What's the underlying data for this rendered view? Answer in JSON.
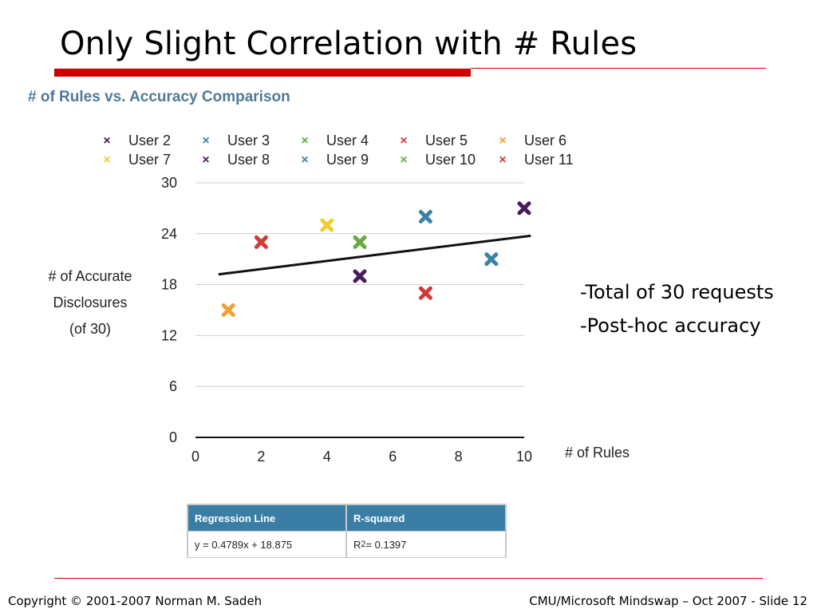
{
  "slide": {
    "title": "Only Slight Correlation with # Rules",
    "notes": [
      "-Total of 30 requests",
      "-Post-hoc accuracy"
    ],
    "footer_left": "Copyright © 2001-2007 Norman M. Sadeh",
    "footer_right": "CMU/Microsoft Mindswap – Oct  2007 - Slide 12",
    "accent_color": "#cc0000"
  },
  "chart_data": {
    "type": "scatter",
    "title": "# of Rules vs. Accuracy Comparison",
    "xlabel": "# of Rules",
    "ylabel_lines": [
      "# of Accurate",
      "Disclosures",
      "(of 30)"
    ],
    "xlim": [
      0,
      10
    ],
    "ylim": [
      0,
      30
    ],
    "x_ticks": [
      0,
      2,
      4,
      6,
      8,
      10
    ],
    "y_ticks": [
      0,
      6,
      12,
      18,
      24,
      30
    ],
    "grid": true,
    "legend_position": "top",
    "series": [
      {
        "name": "User 2",
        "color": "#4a1b5a",
        "points": [
          [
            5,
            19
          ]
        ]
      },
      {
        "name": "User 3",
        "color": "#3b82a8",
        "points": [
          [
            9,
            21
          ]
        ]
      },
      {
        "name": "User 4",
        "color": "#6aaa45",
        "points": [
          [
            5,
            23
          ]
        ]
      },
      {
        "name": "User 5",
        "color": "#d23a3a",
        "points": [
          [
            7,
            17
          ]
        ]
      },
      {
        "name": "User 6",
        "color": "#f0a030",
        "points": [
          [
            1,
            15
          ]
        ]
      },
      {
        "name": "User 7",
        "color": "#f0cc30",
        "points": [
          [
            4,
            25
          ]
        ]
      },
      {
        "name": "User 8",
        "color": "#4a1b5a",
        "points": [
          [
            10,
            27
          ]
        ]
      },
      {
        "name": "User 9",
        "color": "#3b82a8",
        "points": [
          [
            7,
            26
          ]
        ]
      },
      {
        "name": "User 10",
        "color": "#6aaa45",
        "points": []
      },
      {
        "name": "User 11",
        "color": "#d23a3a",
        "points": [
          [
            2,
            23
          ]
        ]
      }
    ],
    "regression": {
      "slope": 0.4789,
      "intercept": 18.875,
      "x_range": [
        0.7,
        10.2
      ],
      "color": "#111111"
    },
    "table": {
      "headers": [
        "Regression Line",
        "R-squared"
      ],
      "equation": "y = 0.4789x + 18.875",
      "r2_label": "R",
      "r2_power": "2",
      "r2_value": " = 0.1397",
      "header_color": "#3a7ea6"
    }
  }
}
